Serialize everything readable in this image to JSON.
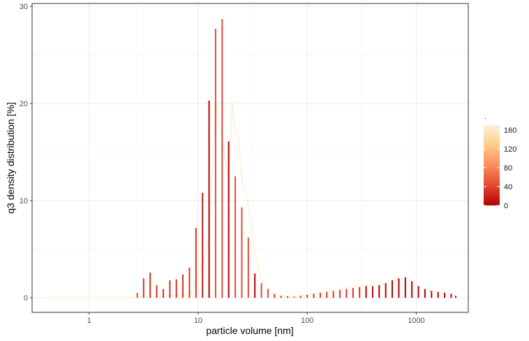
{
  "chart_data": {
    "type": "line",
    "xscale": "log",
    "xlabel": "particle volume [nm]",
    "ylabel": "q3 density distribution [%]",
    "xlim": [
      0.3,
      3000
    ],
    "ylim": [
      -1.5,
      30.3
    ],
    "x_ticks": [
      1,
      10,
      100,
      1000
    ],
    "x_tick_labels": [
      "1",
      "10",
      "100",
      "1000"
    ],
    "y_ticks": [
      0,
      10,
      20,
      30
    ],
    "y_tick_labels": [
      "0",
      "10",
      "20",
      "30"
    ],
    "grid": true,
    "legend": {
      "title": ".",
      "position": "right",
      "range": [
        0,
        170
      ],
      "ticks": [
        0,
        40,
        80,
        120,
        160
      ],
      "tick_labels": [
        "0",
        "40",
        "80",
        "120",
        "160"
      ],
      "colors": [
        "#b30000",
        "#e34a33",
        "#fc8d59",
        "#fdcc8a",
        "#fef0d9"
      ]
    },
    "spike_x": [
      0.35,
      2.76,
      3.16,
      3.63,
      4.17,
      4.79,
      5.5,
      6.31,
      7.24,
      8.32,
      9.55,
      10.96,
      12.59,
      14.45,
      16.6,
      19.05,
      21.88,
      25.12,
      28.84,
      33.11,
      38.02,
      43.65,
      50.12,
      57.54,
      66.07,
      75.86,
      87.1,
      100,
      114.8,
      131.8,
      151.4,
      173.8,
      199.5,
      229.1,
      263,
      302,
      346.7,
      398.1,
      457.1,
      524.8,
      602.6,
      691.8,
      794.3,
      912,
      1047,
      1202,
      1380,
      1585,
      1820,
      2089,
      2300
    ],
    "spike_y": [
      0,
      0.5,
      2.0,
      2.6,
      1.3,
      0.9,
      1.8,
      1.9,
      2.4,
      3.1,
      7.2,
      10.8,
      20.3,
      27.7,
      28.7,
      16.1,
      12.5,
      9.3,
      6.2,
      2.5,
      1.5,
      0.9,
      0.4,
      0.2,
      0.15,
      0.1,
      0.2,
      0.3,
      0.4,
      0.5,
      0.6,
      0.7,
      0.8,
      0.9,
      1.0,
      1.1,
      1.2,
      1.2,
      1.3,
      1.5,
      1.8,
      2.0,
      2.1,
      1.7,
      1.2,
      0.9,
      0.7,
      0.6,
      0.5,
      0.4,
      0.2
    ],
    "spike_colors": [
      "#fef0d9",
      "#e34a33",
      "#d7301f",
      "#d7301f",
      "#d7301f",
      "#d7301f",
      "#d7301f",
      "#d7301f",
      "#d7301f",
      "#d7301f",
      "#d7301f",
      "#c81d14",
      "#b30000",
      "#e34a33",
      "#e34a33",
      "#b30000",
      "#e34a33",
      "#e34a33",
      "#e34a33",
      "#b30000",
      "#e34a33",
      "#e34a33",
      "#d7301f",
      "#d7301f",
      "#d7301f",
      "#d7301f",
      "#d7301f",
      "#d7301f",
      "#d7301f",
      "#d7301f",
      "#d7301f",
      "#d7301f",
      "#d7301f",
      "#d7301f",
      "#d7301f",
      "#d7301f",
      "#b30000",
      "#b30000",
      "#b30000",
      "#b30000",
      "#b30000",
      "#b30000",
      "#b30000",
      "#b30000",
      "#b30000",
      "#b30000",
      "#b30000",
      "#b30000",
      "#b30000",
      "#b30000",
      "#b30000"
    ],
    "series": [
      {
        "value": 160,
        "color": "#fef0d9",
        "x": [
          0.35,
          2.5,
          8.5,
          9.55,
          10.96,
          12.59,
          14.45,
          16.6,
          19.05,
          20.5,
          21.88,
          23.5,
          25.12,
          28.84,
          33.11,
          38.02,
          43.65,
          50.12,
          57.54,
          66.07,
          75.86,
          87.1,
          100,
          131.8,
          173.8,
          229.1,
          302,
          398.1,
          524.8,
          691.8,
          794.3,
          912,
          1047,
          1202,
          1380,
          1585,
          1820,
          2089,
          2300
        ],
        "y": [
          0,
          0,
          0.3,
          1.8,
          3.5,
          6.0,
          20.0,
          16.5,
          12.0,
          20.3,
          17.0,
          16.5,
          12.0,
          9.5,
          4.5,
          1.8,
          1.0,
          0.4,
          0.2,
          0.15,
          0.1,
          0.2,
          0.3,
          0.5,
          0.8,
          1.0,
          1.2,
          1.3,
          1.5,
          2.0,
          2.1,
          1.7,
          1.2,
          0.9,
          0.7,
          0.6,
          0.5,
          0.4,
          0.2
        ]
      }
    ]
  }
}
